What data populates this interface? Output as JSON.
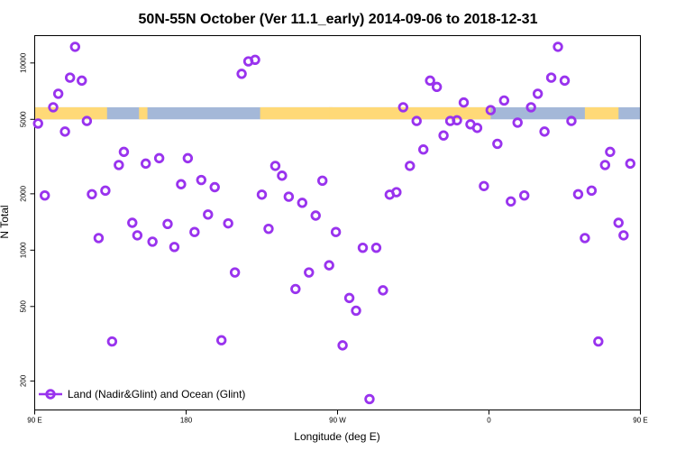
{
  "chart_data": {
    "type": "scatter",
    "title": "50N-55N October (Ver 11.1_early)   2014-09-06 to 2018-12-31",
    "xlabel": "Longitude (deg E)",
    "ylabel": "N Total",
    "y_scale": "log",
    "ylim": [
      140,
      14000
    ],
    "xlim": [
      90,
      450
    ],
    "x_ticks": [
      {
        "value": 90,
        "label": "90 E"
      },
      {
        "value": 180,
        "label": "180"
      },
      {
        "value": 270,
        "label": "90 W"
      },
      {
        "value": 360,
        "label": "0"
      },
      {
        "value": 450,
        "label": "90 E"
      },
      {
        "value": 540,
        "label": "180"
      }
    ],
    "y_ticks": [
      {
        "value": 200,
        "label": "200"
      },
      {
        "value": 500,
        "label": "500"
      },
      {
        "value": 1000,
        "label": "1000"
      },
      {
        "value": 2000,
        "label": "2000"
      },
      {
        "value": 5000,
        "label": "5000"
      },
      {
        "value": 10000,
        "label": "10000"
      }
    ],
    "land_ocean_band": {
      "y_range": [
        5000,
        5800
      ],
      "ocean_color": "#a4b8d8",
      "land_color": "#ffd977",
      "land_x_ranges": [
        [
          90,
          133
        ],
        [
          152,
          157
        ],
        [
          224,
          267
        ],
        [
          265,
          361
        ],
        [
          417,
          437
        ],
        [
          454,
          509
        ],
        [
          522,
          532
        ]
      ]
    },
    "grid": false,
    "legend": {
      "position": "bottom-left"
    },
    "series": [
      {
        "name": "Land (Nadir&Glint) and Ocean (Glint)",
        "color": "#9933ee",
        "marker": "circle-open",
        "points": [
          [
            92,
            4750
          ],
          [
            96,
            1960
          ],
          [
            101,
            5800
          ],
          [
            104,
            6850
          ],
          [
            108,
            4300
          ],
          [
            111,
            8350
          ],
          [
            114,
            12200
          ],
          [
            118,
            8050
          ],
          [
            121,
            4900
          ],
          [
            124,
            1990
          ],
          [
            128,
            1160
          ],
          [
            132,
            2080
          ],
          [
            136,
            325
          ],
          [
            140,
            2850
          ],
          [
            143,
            3350
          ],
          [
            148,
            1400
          ],
          [
            151,
            1200
          ],
          [
            156,
            2900
          ],
          [
            160,
            1110
          ],
          [
            164,
            3100
          ],
          [
            169,
            1380
          ],
          [
            173,
            1040
          ],
          [
            177,
            2250
          ],
          [
            181,
            3100
          ],
          [
            185,
            1250
          ],
          [
            189,
            2370
          ],
          [
            193,
            1550
          ],
          [
            197,
            2170
          ],
          [
            201,
            330
          ],
          [
            205,
            1390
          ],
          [
            209,
            760
          ],
          [
            213,
            8750
          ],
          [
            217,
            10200
          ],
          [
            221,
            10400
          ],
          [
            225,
            1980
          ],
          [
            229,
            1300
          ],
          [
            233,
            2820
          ],
          [
            237,
            2500
          ],
          [
            241,
            1930
          ],
          [
            245,
            620
          ],
          [
            249,
            1790
          ],
          [
            253,
            760
          ],
          [
            257,
            1530
          ],
          [
            261,
            2350
          ],
          [
            265,
            830
          ],
          [
            269,
            1250
          ],
          [
            273,
            310
          ],
          [
            277,
            555
          ],
          [
            281,
            475
          ],
          [
            285,
            1030
          ],
          [
            289,
            160
          ],
          [
            293,
            1030
          ],
          [
            297,
            610
          ],
          [
            301,
            1980
          ],
          [
            305,
            2040
          ],
          [
            309,
            5800
          ],
          [
            313,
            2820
          ],
          [
            317,
            4900
          ],
          [
            321,
            3450
          ],
          [
            325,
            8050
          ],
          [
            329,
            7450
          ],
          [
            333,
            4100
          ],
          [
            337,
            4900
          ],
          [
            341,
            4940
          ],
          [
            345,
            6150
          ],
          [
            349,
            4700
          ],
          [
            353,
            4500
          ],
          [
            357,
            2200
          ],
          [
            361,
            5600
          ],
          [
            365,
            3700
          ],
          [
            369,
            6300
          ],
          [
            373,
            1820
          ],
          [
            377,
            4800
          ],
          [
            381,
            1960
          ],
          [
            385,
            5800
          ],
          [
            389,
            6850
          ],
          [
            393,
            4300
          ],
          [
            397,
            8350
          ],
          [
            401,
            12200
          ],
          [
            405,
            8050
          ],
          [
            409,
            4900
          ],
          [
            413,
            1990
          ],
          [
            417,
            1160
          ],
          [
            421,
            2080
          ],
          [
            425,
            325
          ],
          [
            429,
            2850
          ],
          [
            432,
            3350
          ],
          [
            437,
            1400
          ],
          [
            440,
            1200
          ],
          [
            444,
            2900
          ]
        ]
      }
    ]
  }
}
